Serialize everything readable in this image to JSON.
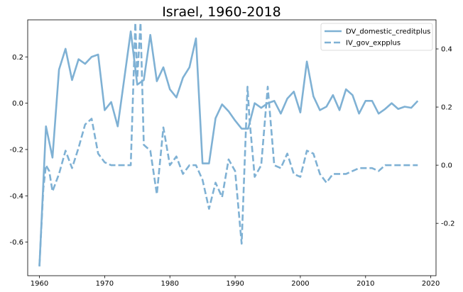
{
  "chart_data": {
    "type": "line",
    "title": "Israel, 1960-2018",
    "xlabel": "",
    "ylabel_left": "",
    "ylabel_right": "",
    "xlim": [
      1958.2,
      2020.8
    ],
    "ylim_left": [
      -0.745,
      0.36
    ],
    "ylim_right": [
      -0.38,
      0.5
    ],
    "x_ticks": [
      1960,
      1970,
      1980,
      1990,
      2000,
      2010,
      2020
    ],
    "y_ticks_left": [
      0.2,
      0.0,
      -0.2,
      -0.4,
      -0.6
    ],
    "y_ticks_right": [
      0.4,
      0.2,
      0.0,
      -0.2
    ],
    "grid": false,
    "legend_position": "top-right",
    "series_color": "#7fb1d4",
    "series": [
      {
        "name": "DV_domestic_creditplus",
        "axis": "left",
        "style": "solid",
        "x": [
          1960,
          1961,
          1962,
          1963,
          1964,
          1965,
          1966,
          1967,
          1968,
          1969,
          1970,
          1971,
          1972,
          1974,
          1975,
          1976,
          1977,
          1978,
          1979,
          1980,
          1981,
          1982,
          1983,
          1984,
          1985,
          1986,
          1987,
          1988,
          1989,
          1990,
          1991,
          1992,
          1993,
          1994,
          1995,
          1996,
          1997,
          1998,
          1999,
          2000,
          2001,
          2002,
          2003,
          2004,
          2005,
          2006,
          2007,
          2008,
          2009,
          2010,
          2011,
          2012,
          2013,
          2014,
          2015,
          2016,
          2017,
          2018
        ],
        "values": [
          -0.705,
          -0.1,
          -0.235,
          0.145,
          0.235,
          0.1,
          0.19,
          0.17,
          0.2,
          0.21,
          -0.03,
          0.005,
          -0.1,
          0.31,
          0.08,
          0.1,
          0.295,
          0.095,
          0.155,
          0.06,
          0.025,
          0.11,
          0.155,
          0.28,
          -0.26,
          -0.26,
          -0.065,
          -0.005,
          -0.035,
          -0.075,
          -0.11,
          -0.11,
          0.0,
          -0.02,
          0.0,
          0.01,
          -0.045,
          0.02,
          0.05,
          -0.04,
          0.18,
          0.03,
          -0.03,
          -0.015,
          0.035,
          -0.03,
          0.06,
          0.035,
          -0.045,
          0.01,
          0.01,
          -0.045,
          -0.025,
          0.0,
          -0.025,
          -0.015,
          -0.02,
          0.01
        ]
      },
      {
        "name": "IV_gov_expplus",
        "axis": "right",
        "style": "dashed",
        "x": [
          1960,
          1960.6,
          1961,
          1961.5,
          1962,
          1963,
          1964,
          1965,
          1966,
          1967,
          1968,
          1969,
          1970,
          1971,
          1972,
          1973,
          1974,
          1974.7,
          1975,
          1975.5,
          1976,
          1977,
          1978,
          1979,
          1980,
          1981,
          1982,
          1983,
          1984,
          1985,
          1986,
          1987,
          1988,
          1989,
          1990,
          1991,
          1991.9,
          1992.2,
          1993,
          1994,
          1995,
          1996,
          1997,
          1998,
          1999,
          2000,
          2001,
          2002,
          2003,
          2004,
          2005,
          2006,
          2007,
          2008,
          2009,
          2010,
          2011,
          2012,
          2013,
          2014,
          2015,
          2016,
          2017,
          2018
        ],
        "values": [
          -0.345,
          -0.08,
          0.0,
          -0.02,
          -0.09,
          -0.03,
          0.05,
          -0.01,
          0.06,
          0.14,
          0.16,
          0.04,
          0.01,
          0.0,
          0.0,
          0.0,
          0.0,
          0.49,
          0.3,
          0.49,
          0.07,
          0.05,
          -0.1,
          0.13,
          0.0,
          0.03,
          -0.03,
          0.0,
          0.0,
          -0.05,
          -0.15,
          -0.06,
          -0.11,
          0.02,
          -0.02,
          -0.27,
          0.27,
          0.16,
          -0.04,
          0.0,
          0.27,
          0.0,
          -0.01,
          0.04,
          -0.03,
          -0.04,
          0.05,
          0.04,
          -0.03,
          -0.06,
          -0.03,
          -0.03,
          -0.03,
          -0.02,
          -0.01,
          -0.01,
          -0.01,
          -0.02,
          0.0,
          0.0,
          0.0,
          0.0,
          0.0,
          0.0
        ]
      }
    ]
  }
}
